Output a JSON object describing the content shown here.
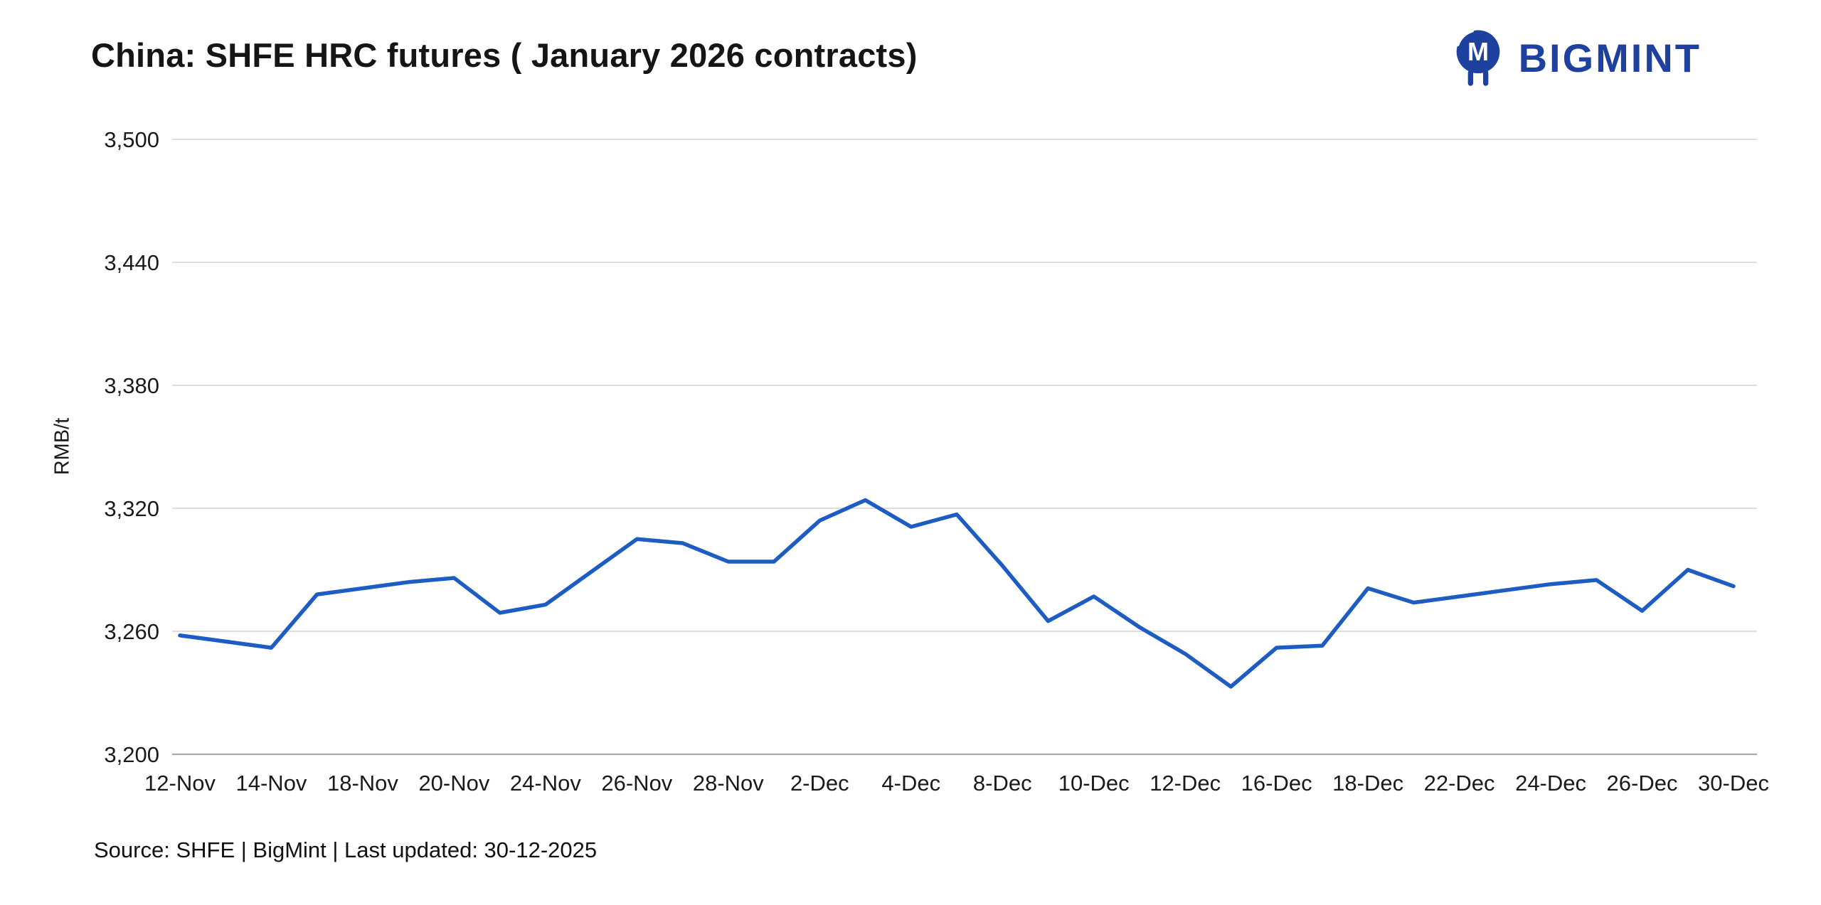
{
  "header": {
    "title": "China: SHFE HRC futures ( January 2026 contracts)",
    "logo_text": "BIGMINT",
    "brand_color": "#1e409e"
  },
  "footer": {
    "source": "Source: SHFE | BigMint | Last updated: 30-12-2025"
  },
  "chart_data": {
    "type": "line",
    "title": "China: SHFE HRC futures ( January 2026 contracts)",
    "xlabel": "",
    "ylabel": "RMB/t",
    "ylim": [
      3200,
      3500
    ],
    "ytick_step": 60,
    "grid": "horizontal",
    "legend": "none",
    "line_color": "#1d5cc2",
    "series_name": "SHFE HRC January 2026 futures price",
    "yticks": [
      {
        "label": "3,500",
        "value": 3500
      },
      {
        "label": "3,440",
        "value": 3440
      },
      {
        "label": "3,380",
        "value": 3380
      },
      {
        "label": "3,320",
        "value": 3320
      },
      {
        "label": "3,260",
        "value": 3260
      },
      {
        "label": "3,200",
        "value": 3200
      }
    ],
    "xticks": [
      {
        "label": "12-Nov",
        "index": 0
      },
      {
        "label": "14-Nov",
        "index": 2
      },
      {
        "label": "18-Nov",
        "index": 4
      },
      {
        "label": "20-Nov",
        "index": 6
      },
      {
        "label": "24-Nov",
        "index": 8
      },
      {
        "label": "26-Nov",
        "index": 10
      },
      {
        "label": "28-Nov",
        "index": 12
      },
      {
        "label": "2-Dec",
        "index": 14
      },
      {
        "label": "4-Dec",
        "index": 16
      },
      {
        "label": "8-Dec",
        "index": 18
      },
      {
        "label": "10-Dec",
        "index": 20
      },
      {
        "label": "12-Dec",
        "index": 22
      },
      {
        "label": "16-Dec",
        "index": 24
      },
      {
        "label": "18-Dec",
        "index": 26
      },
      {
        "label": "22-Dec",
        "index": 28
      },
      {
        "label": "24-Dec",
        "index": 30
      },
      {
        "label": "26-Dec",
        "index": 32
      },
      {
        "label": "30-Dec",
        "index": 34
      }
    ],
    "points": [
      {
        "date": "12-Nov",
        "value": 3258
      },
      {
        "date": "13-Nov",
        "value": 3255
      },
      {
        "date": "14-Nov",
        "value": 3252
      },
      {
        "date": "17-Nov",
        "value": 3278
      },
      {
        "date": "18-Nov",
        "value": 3281
      },
      {
        "date": "19-Nov",
        "value": 3284
      },
      {
        "date": "20-Nov",
        "value": 3286
      },
      {
        "date": "21-Nov",
        "value": 3269
      },
      {
        "date": "24-Nov",
        "value": 3273
      },
      {
        "date": "25-Nov",
        "value": 3289
      },
      {
        "date": "26-Nov",
        "value": 3305
      },
      {
        "date": "27-Nov",
        "value": 3303
      },
      {
        "date": "28-Nov",
        "value": 3294
      },
      {
        "date": "1-Dec",
        "value": 3294
      },
      {
        "date": "2-Dec",
        "value": 3314
      },
      {
        "date": "3-Dec",
        "value": 3324
      },
      {
        "date": "4-Dec",
        "value": 3311
      },
      {
        "date": "5-Dec",
        "value": 3317
      },
      {
        "date": "8-Dec",
        "value": 3292
      },
      {
        "date": "9-Dec",
        "value": 3265
      },
      {
        "date": "10-Dec",
        "value": 3277
      },
      {
        "date": "11-Dec",
        "value": 3262
      },
      {
        "date": "12-Dec",
        "value": 3249
      },
      {
        "date": "15-Dec",
        "value": 3233
      },
      {
        "date": "16-Dec",
        "value": 3252
      },
      {
        "date": "17-Dec",
        "value": 3253
      },
      {
        "date": "18-Dec",
        "value": 3281
      },
      {
        "date": "19-Dec",
        "value": 3274
      },
      {
        "date": "22-Dec",
        "value": 3277
      },
      {
        "date": "23-Dec",
        "value": 3280
      },
      {
        "date": "24-Dec",
        "value": 3283
      },
      {
        "date": "25-Dec",
        "value": 3285
      },
      {
        "date": "26-Dec",
        "value": 3270
      },
      {
        "date": "29-Dec",
        "value": 3290
      },
      {
        "date": "30-Dec",
        "value": 3282
      }
    ]
  }
}
